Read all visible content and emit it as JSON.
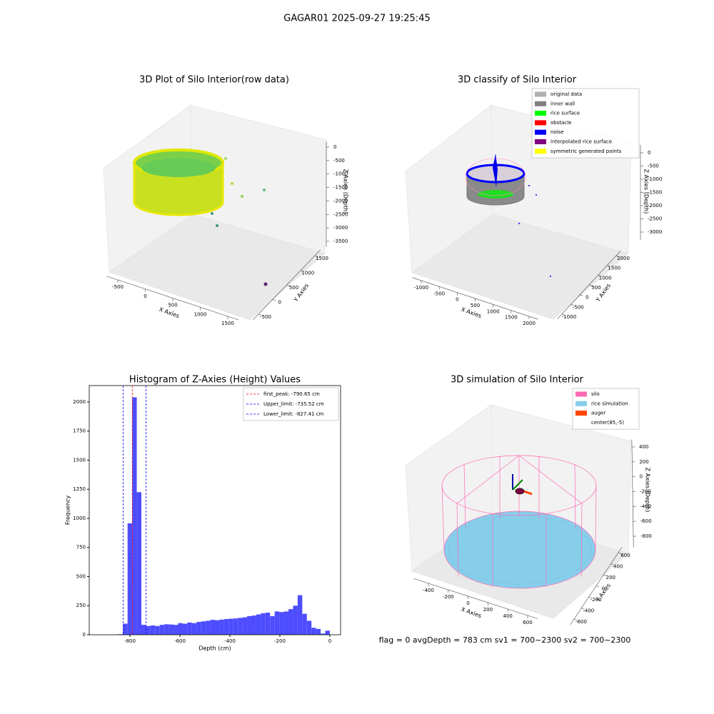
{
  "title": "GAGAR01 2025-09-27 19:25:45",
  "footer": "flag = 0     avgDepth = 783 cm  sv1 = 700~2300  sv2 = 700~2300",
  "chart_data": [
    {
      "type": "scatter3d",
      "title": "3D Plot of Silo Interior(row data)",
      "x_label": "X Axies",
      "y_label": "Y Axies",
      "z_label": "Z Axies (Depth)",
      "xlim": [
        -700,
        1700
      ],
      "xticks": [
        -500,
        0,
        500,
        1000,
        1500
      ],
      "ylim": [
        -700,
        1700
      ],
      "yticks": [
        -500,
        0,
        500,
        1000,
        1500
      ],
      "zlim": [
        -3700,
        200
      ],
      "zticks": [
        0,
        -500,
        -1000,
        -1500,
        -2000,
        -2500,
        -3000,
        -3500
      ]
    },
    {
      "type": "scatter3d",
      "title": "3D classify of Silo Interior",
      "x_label": "X Axies",
      "y_label": "Y Axies",
      "z_label": "Z Axies (Depth)",
      "xlim": [
        -1250,
        2250
      ],
      "xticks": [
        -1000,
        -500,
        0,
        500,
        1000,
        1500,
        2000
      ],
      "ylim": [
        -1250,
        2250
      ],
      "yticks": [
        -1000,
        -500,
        0,
        500,
        1000,
        1500,
        2000
      ],
      "zlim": [
        -3300,
        300
      ],
      "zticks": [
        0,
        -500,
        -1000,
        -1500,
        -2000,
        -2500,
        -3000
      ],
      "legend": "upper right",
      "series": [
        {
          "name": "original data",
          "color": "#b0b0b0"
        },
        {
          "name": "inner wall",
          "color": "#808080"
        },
        {
          "name": "rice surface",
          "color": "#00ff00"
        },
        {
          "name": "obstacle",
          "color": "#ff0000"
        },
        {
          "name": "noise",
          "color": "#0000ff"
        },
        {
          "name": "interpolated rice surface",
          "color": "#800080"
        },
        {
          "name": "symmetric generated points",
          "color": "#ffff00"
        }
      ]
    },
    {
      "type": "histogram",
      "title": "Histogram of Z-Axies (Height) Values",
      "x_label": "Depth (cm)",
      "y_label": "Frequency",
      "color": "#4d4dff",
      "bins": [
        -920,
        -901.6,
        -883.2,
        -864.8,
        -846.4,
        -828,
        -809.6,
        -791.2,
        -772.8,
        -754.4,
        -736,
        -717.6,
        -699.2,
        -680.8,
        -662.4,
        -644,
        -625.6,
        -607.2,
        -588.8,
        -570.4,
        -552,
        -533.6,
        -515.2,
        -496.8,
        -478.4,
        -460,
        -441.6,
        -423.2,
        -404.8,
        -386.4,
        -368,
        -349.6,
        -331.2,
        -312.8,
        -294.4,
        -276,
        -257.6,
        -239.2,
        -220.8,
        -202.4,
        -184,
        -165.6,
        -147.2,
        -128.8,
        -110.4,
        -92,
        -73.6,
        -55.2,
        -36.8,
        -18.4,
        0
      ],
      "values": [
        0,
        0,
        0,
        2,
        5,
        95,
        957,
        2040,
        1225,
        85,
        75,
        80,
        75,
        85,
        90,
        88,
        85,
        100,
        95,
        105,
        100,
        110,
        115,
        120,
        128,
        125,
        130,
        135,
        138,
        140,
        145,
        150,
        160,
        165,
        175,
        185,
        190,
        160,
        200,
        195,
        200,
        220,
        250,
        340,
        180,
        120,
        60,
        50,
        10,
        35
      ],
      "xlim": [
        -963,
        43
      ],
      "xticks": [
        -800,
        -600,
        -400,
        -200,
        0
      ],
      "ylim": [
        0,
        2141
      ],
      "yticks": [
        0,
        250,
        500,
        750,
        1000,
        1250,
        1500,
        1750,
        2000
      ],
      "legend": "upper right",
      "lines": [
        {
          "label": "first_peak: -790.65 cm",
          "value": -790.65,
          "color": "#ff0000"
        },
        {
          "label": "Upper_limit: -735.52 cm",
          "value": -735.52,
          "color": "#0000ff"
        },
        {
          "label": "Lower_limit: -827.41 cm",
          "value": -827.41,
          "color": "#0000ff"
        }
      ]
    },
    {
      "type": "scatter3d",
      "title": "3D simulation of Silo Interior",
      "x_label": "X Axies",
      "y_label": "Y Axies",
      "z_label": "Z Axies (Depth)",
      "xlim": [
        -550,
        700
      ],
      "xticks": [
        -400,
        -200,
        0,
        200,
        400,
        600
      ],
      "ylim": [
        -700,
        700
      ],
      "yticks": [
        -600,
        -400,
        -200,
        0,
        200,
        400,
        600
      ],
      "zlim": [
        -950,
        500
      ],
      "zticks": [
        400,
        200,
        0,
        -200,
        -400,
        -600,
        -800
      ],
      "legend": "upper right",
      "series": [
        {
          "name": "silo",
          "color": "#ff69b4"
        },
        {
          "name": "rice simulation",
          "color": "#87ceeb"
        },
        {
          "name": "auger",
          "color": "#ff4500"
        },
        {
          "name": "center(85,-5)",
          "color": "#ffffff"
        }
      ]
    }
  ]
}
